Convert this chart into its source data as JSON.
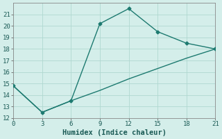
{
  "xlabel": "Humidex (Indice chaleur)",
  "line1_x": [
    0,
    3,
    6,
    9,
    12,
    15,
    18,
    21
  ],
  "line1_y": [
    14.8,
    12.5,
    13.5,
    20.2,
    21.5,
    19.5,
    18.5,
    18.0
  ],
  "line2_x": [
    0,
    3,
    6,
    9,
    12,
    15,
    18,
    21
  ],
  "line2_y": [
    14.8,
    12.5,
    13.5,
    14.4,
    15.4,
    16.3,
    17.2,
    18.0
  ],
  "line_color": "#1d7a70",
  "bg_color": "#d4eeea",
  "grid_color": "#b0d8d0",
  "spine_color": "#888888",
  "xlim": [
    0,
    21
  ],
  "ylim": [
    12,
    22
  ],
  "xticks": [
    0,
    3,
    6,
    9,
    12,
    15,
    18,
    21
  ],
  "yticks": [
    12,
    13,
    14,
    15,
    16,
    17,
    18,
    19,
    20,
    21
  ],
  "tick_labelsize": 6.5,
  "xlabel_fontsize": 7.5,
  "marker": "D",
  "markersize": 2.5,
  "linewidth": 1.0
}
